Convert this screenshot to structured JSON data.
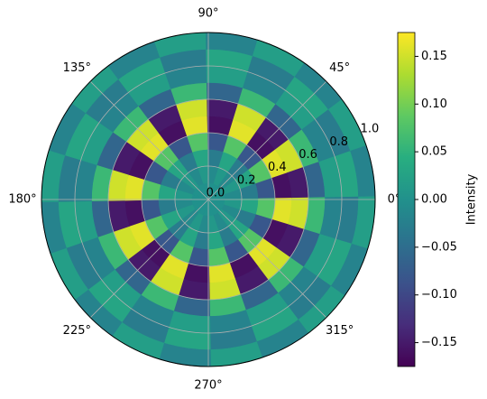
{
  "chart_data": {
    "type": "polar_heatmap",
    "colormap": "viridis",
    "colorbar_label": "Intensity",
    "theta_bins": [
      1,
      19,
      37,
      55,
      73,
      91,
      109,
      127,
      145,
      163,
      181,
      199,
      217,
      235,
      253,
      271,
      289,
      307,
      325,
      343,
      361
    ],
    "r_bins": [
      0,
      0.1,
      0.2,
      0.3,
      0.4,
      0.5,
      0.6,
      0.7,
      0.8,
      0.9,
      1
    ],
    "z": [
      [
        0,
        0,
        0,
        0,
        0,
        0,
        0,
        0,
        0,
        0,
        0,
        0,
        0,
        0,
        0,
        0,
        0,
        0,
        0,
        0
      ],
      [
        -0.01,
        0.01,
        -0.01,
        0.01,
        -0.01,
        0.01,
        -0.01,
        0.01,
        -0.01,
        0.01,
        -0.01,
        0.01,
        -0.01,
        0.01,
        -0.01,
        0.01,
        -0.01,
        0.01,
        -0.01,
        0.01
      ],
      [
        -0.03,
        0.03,
        -0.03,
        0.03,
        -0.03,
        0.03,
        -0.03,
        0.03,
        -0.03,
        0.03,
        -0.03,
        0.03,
        -0.03,
        0.03,
        -0.03,
        0.03,
        -0.03,
        0.03,
        -0.03,
        0.03
      ],
      [
        -0.08,
        0.08,
        -0.08,
        0.08,
        -0.08,
        0.08,
        -0.08,
        0.08,
        -0.08,
        0.08,
        -0.08,
        0.08,
        -0.08,
        0.08,
        -0.08,
        0.08,
        -0.08,
        0.08,
        -0.08,
        0.08
      ],
      [
        -0.16,
        0.16,
        -0.16,
        0.16,
        -0.16,
        0.16,
        -0.16,
        0.16,
        -0.16,
        0.16,
        -0.16,
        0.16,
        -0.16,
        0.16,
        -0.16,
        0.16,
        -0.16,
        0.16,
        -0.16,
        0.16
      ],
      [
        -0.15,
        0.15,
        -0.15,
        0.15,
        -0.15,
        0.15,
        -0.15,
        0.15,
        -0.15,
        0.15,
        -0.15,
        0.15,
        -0.15,
        0.15,
        -0.15,
        0.15,
        -0.15,
        0.15,
        -0.15,
        0.15
      ],
      [
        -0.06,
        0.06,
        -0.06,
        0.06,
        -0.06,
        0.06,
        -0.06,
        0.06,
        -0.06,
        0.06,
        -0.06,
        0.06,
        -0.06,
        0.06,
        -0.06,
        0.06,
        -0.06,
        0.06,
        -0.06,
        0.06
      ],
      [
        0.02,
        -0.02,
        0.02,
        -0.02,
        0.02,
        -0.02,
        0.02,
        -0.02,
        0.02,
        -0.02,
        0.02,
        -0.02,
        0.02,
        -0.02,
        0.02,
        -0.02,
        0.02,
        -0.02,
        0.02,
        -0.02
      ],
      [
        0.03,
        -0.03,
        0.03,
        -0.03,
        0.03,
        -0.03,
        0.03,
        -0.03,
        0.03,
        -0.03,
        0.03,
        -0.03,
        0.03,
        -0.03,
        0.03,
        -0.03,
        0.03,
        -0.03,
        0.03,
        -0.03
      ],
      [
        -0.02,
        0.02,
        -0.02,
        0.02,
        -0.02,
        0.02,
        -0.02,
        0.02,
        -0.02,
        0.02,
        -0.02,
        0.02,
        -0.02,
        0.02,
        -0.02,
        0.02,
        -0.02,
        0.02,
        -0.02,
        0.02
      ]
    ],
    "rlim": [
      0,
      1
    ],
    "rticks": [
      {
        "value": 0,
        "label": "0.0"
      },
      0.2,
      0.4,
      0.6,
      0.8,
      {
        "value": 1,
        "label": "1.0"
      }
    ],
    "thetaticks": [
      {
        "value": 0,
        "label": "0°"
      },
      {
        "value": 45,
        "label": "45°"
      },
      {
        "value": 90,
        "label": "90°"
      },
      {
        "value": 135,
        "label": "135°"
      },
      {
        "value": 180,
        "label": "180°"
      },
      {
        "value": 225,
        "label": "225°"
      },
      {
        "value": 270,
        "label": "270°"
      },
      {
        "value": 315,
        "label": "315°"
      }
    ],
    "clim": [
      -0.175,
      0.175
    ],
    "cticks": [
      {
        "value": -0.15,
        "label": "−0.15"
      },
      {
        "value": -0.1,
        "label": "−0.10"
      },
      {
        "value": -0.05,
        "label": "−0.05"
      },
      {
        "value": 0,
        "label": "0.00"
      },
      0.05,
      {
        "value": 0.1,
        "label": "0.10"
      },
      0.15
    ],
    "grid": true
  }
}
